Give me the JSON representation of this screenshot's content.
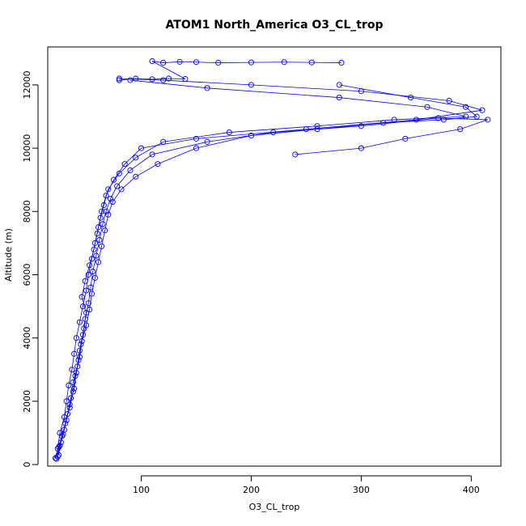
{
  "chart_data": {
    "type": "line",
    "title": "ATOM1 North_America O3_CL_trop",
    "xlabel": "O3_CL_trop",
    "ylabel": "Altitude (m)",
    "xlim": [
      15,
      427
    ],
    "ylim": [
      -50,
      13200
    ],
    "xticks": [
      100,
      200,
      300,
      400
    ],
    "yticks": [
      0,
      2000,
      4000,
      6000,
      8000,
      10000,
      12000
    ],
    "grid": false,
    "legend": "none",
    "color": "#0000ff",
    "series": [
      {
        "values": [
          [
            22,
            200
          ],
          [
            24,
            500
          ],
          [
            26,
            1000
          ],
          [
            30,
            1500
          ],
          [
            32,
            2000
          ],
          [
            34,
            2500
          ],
          [
            37,
            3000
          ],
          [
            39,
            3500
          ],
          [
            41,
            4000
          ],
          [
            44,
            4500
          ],
          [
            47,
            5000
          ],
          [
            50,
            5500
          ],
          [
            52,
            6000
          ],
          [
            55,
            6500
          ],
          [
            58,
            7000
          ],
          [
            61,
            7500
          ],
          [
            64,
            8000
          ],
          [
            68,
            8500
          ],
          [
            75,
            9000
          ],
          [
            85,
            9500
          ],
          [
            100,
            10000
          ],
          [
            150,
            10300
          ],
          [
            250,
            10600
          ],
          [
            350,
            10900
          ],
          [
            410,
            11200
          ],
          [
            380,
            11500
          ],
          [
            300,
            11800
          ],
          [
            200,
            12000
          ],
          [
            120,
            12150
          ],
          [
            80,
            12200
          ]
        ]
      },
      {
        "values": [
          [
            23,
            180
          ],
          [
            25,
            550
          ],
          [
            28,
            900
          ],
          [
            31,
            1300
          ],
          [
            35,
            1800
          ],
          [
            38,
            2300
          ],
          [
            40,
            2800
          ],
          [
            43,
            3300
          ],
          [
            45,
            3800
          ],
          [
            48,
            4300
          ],
          [
            50,
            4800
          ],
          [
            46,
            5300
          ],
          [
            49,
            5800
          ],
          [
            53,
            6300
          ],
          [
            57,
            6800
          ],
          [
            60,
            7300
          ],
          [
            63,
            7800
          ],
          [
            66,
            8200
          ],
          [
            70,
            8700
          ],
          [
            80,
            9200
          ],
          [
            95,
            9700
          ],
          [
            120,
            10200
          ],
          [
            180,
            10500
          ],
          [
            260,
            10700
          ],
          [
            330,
            10900
          ],
          [
            395,
            11000
          ],
          [
            360,
            11300
          ],
          [
            280,
            11600
          ],
          [
            160,
            11900
          ],
          [
            90,
            12150
          ]
        ]
      },
      {
        "values": [
          [
            25,
            300
          ],
          [
            27,
            700
          ],
          [
            30,
            1100
          ],
          [
            33,
            1600
          ],
          [
            36,
            2100
          ],
          [
            38,
            2600
          ],
          [
            42,
            3100
          ],
          [
            44,
            3600
          ],
          [
            47,
            4100
          ],
          [
            49,
            4600
          ],
          [
            52,
            5100
          ],
          [
            54,
            5600
          ],
          [
            56,
            6100
          ],
          [
            59,
            6600
          ],
          [
            62,
            7100
          ],
          [
            65,
            7600
          ],
          [
            68,
            8000
          ],
          [
            72,
            8400
          ],
          [
            78,
            8800
          ],
          [
            90,
            9300
          ],
          [
            110,
            9800
          ],
          [
            160,
            10200
          ],
          [
            220,
            10500
          ],
          [
            300,
            10700
          ],
          [
            370,
            10950
          ],
          [
            415,
            10900
          ],
          [
            390,
            10600
          ],
          [
            340,
            10300
          ],
          [
            300,
            10000
          ],
          [
            240,
            9800
          ]
        ]
      },
      {
        "values": [
          [
            24,
            250
          ],
          [
            26,
            600
          ],
          [
            29,
            950
          ],
          [
            32,
            1400
          ],
          [
            35,
            1900
          ],
          [
            39,
            2400
          ],
          [
            41,
            2900
          ],
          [
            44,
            3400
          ],
          [
            46,
            3900
          ],
          [
            50,
            4400
          ],
          [
            53,
            4900
          ],
          [
            55,
            5400
          ],
          [
            58,
            5900
          ],
          [
            61,
            6400
          ],
          [
            64,
            6900
          ],
          [
            67,
            7400
          ],
          [
            70,
            7900
          ],
          [
            74,
            8300
          ],
          [
            82,
            8700
          ],
          [
            95,
            9100
          ],
          [
            115,
            9500
          ],
          [
            150,
            10000
          ],
          [
            200,
            10400
          ],
          [
            260,
            10600
          ],
          [
            320,
            10800
          ],
          [
            375,
            10900
          ],
          [
            405,
            11000
          ],
          [
            395,
            11300
          ],
          [
            345,
            11600
          ],
          [
            280,
            12000
          ]
        ]
      },
      {
        "values": [
          [
            80,
            12150
          ],
          [
            95,
            12200
          ],
          [
            110,
            12180
          ],
          [
            125,
            12200
          ],
          [
            140,
            12190
          ],
          [
            110,
            12750
          ],
          [
            120,
            12700
          ],
          [
            135,
            12730
          ],
          [
            150,
            12720
          ],
          [
            170,
            12700
          ],
          [
            200,
            12710
          ],
          [
            230,
            12720
          ],
          [
            255,
            12710
          ],
          [
            282,
            12700
          ]
        ]
      }
    ]
  }
}
